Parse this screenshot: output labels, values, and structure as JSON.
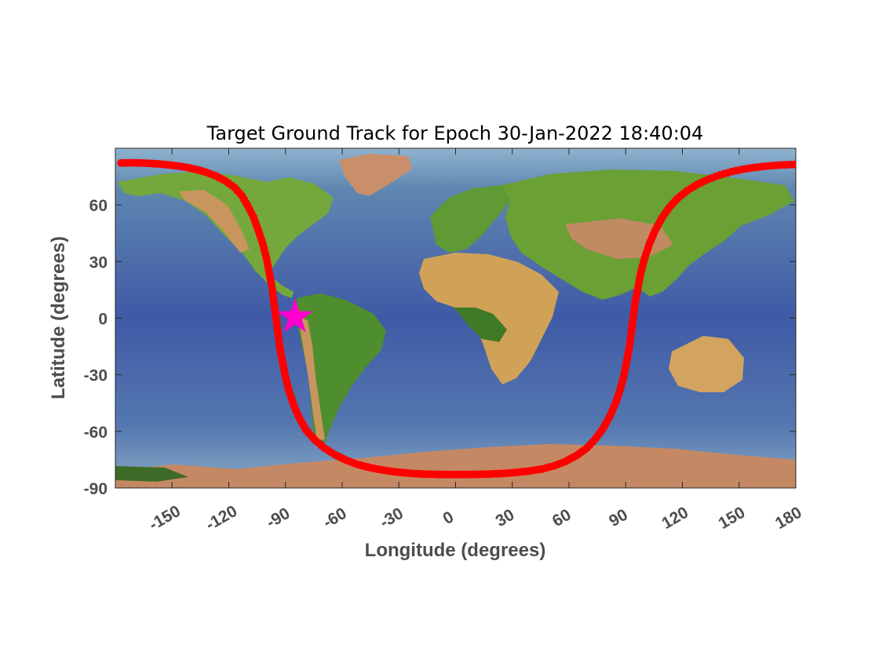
{
  "chart_data": {
    "type": "scatter",
    "title": "Target Ground Track for Epoch 30-Jan-2022 18:40:04",
    "xlabel": "Longitude (degrees)",
    "ylabel": "Latitude (degrees)",
    "xlim": [
      -180,
      180
    ],
    "ylim": [
      -90,
      90
    ],
    "xticks": [
      -150,
      -120,
      -90,
      -60,
      -30,
      0,
      30,
      60,
      90,
      120,
      150,
      180
    ],
    "yticks": [
      -90,
      -60,
      -30,
      0,
      30,
      60
    ],
    "xticklabels": [
      "-150",
      "-120",
      "-90",
      "-60",
      "-30",
      "0",
      "30",
      "60",
      "90",
      "120",
      "150",
      "180"
    ],
    "yticklabels": [
      "-90",
      "-60",
      "-30",
      "0",
      "30",
      "60"
    ],
    "background": "world topographic relief map",
    "grid": false,
    "series": [
      {
        "color": "#ff0000",
        "marker": "filled-circle",
        "points": [
          [
            -177,
            82.2
          ],
          [
            -172,
            82.3
          ],
          [
            -167,
            82.2
          ],
          [
            -162,
            82.0
          ],
          [
            -157,
            81.7
          ],
          [
            -152,
            81.2
          ],
          [
            -147,
            80.6
          ],
          [
            -142,
            79.8
          ],
          [
            -137,
            78.7
          ],
          [
            -132,
            77.3
          ],
          [
            -127,
            75.4
          ],
          [
            -122,
            72.8
          ],
          [
            -117,
            69.3
          ],
          [
            -113,
            64.8
          ],
          [
            -110,
            59.6
          ],
          [
            -107,
            53.7
          ],
          [
            -104.5,
            46.9
          ],
          [
            -102,
            39.4
          ],
          [
            -100,
            31.6
          ],
          [
            -98.5,
            23.6
          ],
          [
            -97,
            15.6
          ],
          [
            -96,
            7.7
          ],
          [
            -95,
            0
          ],
          [
            -94,
            -7.7
          ],
          [
            -93,
            -15.5
          ],
          [
            -91.5,
            -23.4
          ],
          [
            -90,
            -31.3
          ],
          [
            -88,
            -39.0
          ],
          [
            -85.5,
            -46.5
          ],
          [
            -82.5,
            -53.3
          ],
          [
            -79,
            -59.4
          ],
          [
            -74.5,
            -64.5
          ],
          [
            -69.5,
            -68.8
          ],
          [
            -64,
            -72.3
          ],
          [
            -58,
            -75.2
          ],
          [
            -52,
            -77.5
          ],
          [
            -45,
            -79.3
          ],
          [
            -38,
            -80.6
          ],
          [
            -31,
            -81.6
          ],
          [
            -24,
            -82.2
          ],
          [
            -17,
            -82.6
          ],
          [
            -10,
            -82.8
          ],
          [
            -3,
            -82.9
          ],
          [
            4,
            -82.9
          ],
          [
            11,
            -82.8
          ],
          [
            18,
            -82.6
          ],
          [
            25,
            -82.3
          ],
          [
            32,
            -81.8
          ],
          [
            39,
            -81.0
          ],
          [
            46,
            -79.9
          ],
          [
            52,
            -78.3
          ],
          [
            58,
            -76.0
          ],
          [
            64,
            -72.8
          ],
          [
            69.5,
            -68.8
          ],
          [
            74,
            -64.0
          ],
          [
            78,
            -58.5
          ],
          [
            81.5,
            -52.2
          ],
          [
            84.5,
            -45.4
          ],
          [
            87,
            -38.2
          ],
          [
            89,
            -30.7
          ],
          [
            90.5,
            -22.9
          ],
          [
            92,
            -15.0
          ],
          [
            93,
            -7.2
          ],
          [
            94,
            0.6
          ],
          [
            95,
            8.4
          ],
          [
            96.5,
            16.2
          ],
          [
            98,
            24.0
          ],
          [
            100,
            31.7
          ],
          [
            102.5,
            39.2
          ],
          [
            105.5,
            46.3
          ],
          [
            109,
            52.8
          ],
          [
            113,
            58.6
          ],
          [
            117.5,
            63.5
          ],
          [
            122.5,
            67.5
          ],
          [
            128,
            70.9
          ],
          [
            134,
            73.7
          ],
          [
            140,
            75.9
          ],
          [
            146,
            77.6
          ],
          [
            152,
            78.9
          ],
          [
            158,
            79.8
          ],
          [
            164,
            80.5
          ],
          [
            170,
            81.0
          ],
          [
            176,
            81.3
          ],
          [
            180,
            81.4
          ]
        ]
      }
    ],
    "marker_star": {
      "lon": -85,
      "lat": 0.5,
      "color": "#ff00cc"
    }
  }
}
